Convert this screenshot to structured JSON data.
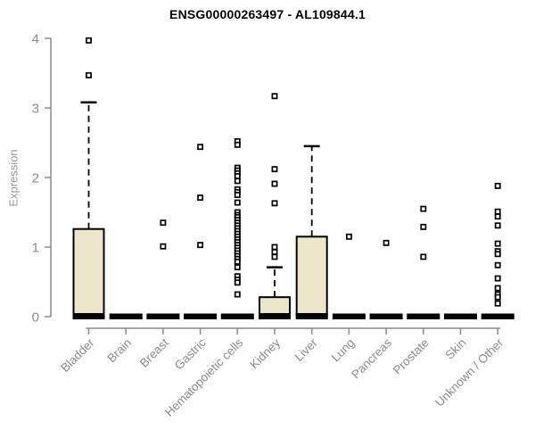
{
  "colors": {
    "box_fill": "#ece7cb",
    "box_stroke": "#000000",
    "axis": "#8a8a8a",
    "tick_label": "#8a8a8a",
    "title": "#000000",
    "outlier_fill": "#ffffff"
  },
  "chart_data": {
    "type": "boxplot",
    "title": "ENSG00000263497 - AL109844.1",
    "ylabel": "Expression",
    "xlabel": "",
    "ylim": [
      0,
      4
    ],
    "yticks": [
      0,
      1,
      2,
      3,
      4
    ],
    "grid": false,
    "legend": false,
    "categories": [
      "Bladder",
      "Brain",
      "Breast",
      "Gastric",
      "Hematopoietic cells",
      "Kidney",
      "Liver",
      "Lung",
      "Pancreas",
      "Prostate",
      "Skin",
      "Unknown / Other"
    ],
    "series": [
      {
        "name": "Bladder",
        "q1": 0,
        "median": 0.02,
        "q3": 1.26,
        "whisker_low": 0,
        "whisker_high": 3.08,
        "outliers": [
          3.97,
          3.47
        ]
      },
      {
        "name": "Brain",
        "q1": 0,
        "median": 0,
        "q3": 0.02,
        "whisker_low": 0,
        "whisker_high": 0.02,
        "outliers": []
      },
      {
        "name": "Breast",
        "q1": 0,
        "median": 0,
        "q3": 0.02,
        "whisker_low": 0,
        "whisker_high": 0.02,
        "outliers": [
          1.35,
          1.01
        ]
      },
      {
        "name": "Gastric",
        "q1": 0,
        "median": 0,
        "q3": 0.02,
        "whisker_low": 0,
        "whisker_high": 0.02,
        "outliers": [
          2.44,
          1.71,
          1.03
        ]
      },
      {
        "name": "Hematopoietic cells",
        "q1": 0,
        "median": 0,
        "q3": 0.02,
        "whisker_low": 0,
        "whisker_high": 0.02,
        "outliers": [
          2.52,
          2.47,
          2.14,
          2.1,
          2.06,
          2.02,
          1.95,
          1.83,
          1.79,
          1.75,
          1.64,
          1.5,
          1.46,
          1.43,
          1.39,
          1.35,
          1.31,
          1.27,
          1.23,
          1.19,
          1.15,
          1.11,
          1.07,
          1.03,
          0.99,
          0.95,
          0.91,
          0.87,
          0.83,
          0.79,
          0.71,
          0.58,
          0.53,
          0.49,
          0.32
        ]
      },
      {
        "name": "Kidney",
        "q1": 0,
        "median": 0.02,
        "q3": 0.28,
        "whisker_low": 0,
        "whisker_high": 0.71,
        "outliers": [
          3.17,
          2.12,
          1.91,
          1.63,
          1.0,
          0.93,
          0.86
        ]
      },
      {
        "name": "Liver",
        "q1": 0,
        "median": 0.02,
        "q3": 1.15,
        "whisker_low": 0,
        "whisker_high": 2.45,
        "outliers": []
      },
      {
        "name": "Lung",
        "q1": 0,
        "median": 0,
        "q3": 0.02,
        "whisker_low": 0,
        "whisker_high": 0.02,
        "outliers": [
          1.15
        ]
      },
      {
        "name": "Pancreas",
        "q1": 0,
        "median": 0,
        "q3": 0.02,
        "whisker_low": 0,
        "whisker_high": 0.02,
        "outliers": [
          1.06
        ]
      },
      {
        "name": "Prostate",
        "q1": 0,
        "median": 0,
        "q3": 0.02,
        "whisker_low": 0,
        "whisker_high": 0.02,
        "outliers": [
          1.55,
          1.29,
          0.86
        ]
      },
      {
        "name": "Skin",
        "q1": 0,
        "median": 0,
        "q3": 0.02,
        "whisker_low": 0,
        "whisker_high": 0.02,
        "outliers": []
      },
      {
        "name": "Unknown / Other",
        "q1": 0,
        "median": 0,
        "q3": 0.02,
        "whisker_low": 0,
        "whisker_high": 0.02,
        "outliers": [
          1.88,
          1.51,
          1.44,
          1.31,
          1.05,
          0.94,
          0.9,
          0.74,
          0.55,
          0.41,
          0.32,
          0.28,
          0.19
        ]
      }
    ]
  }
}
